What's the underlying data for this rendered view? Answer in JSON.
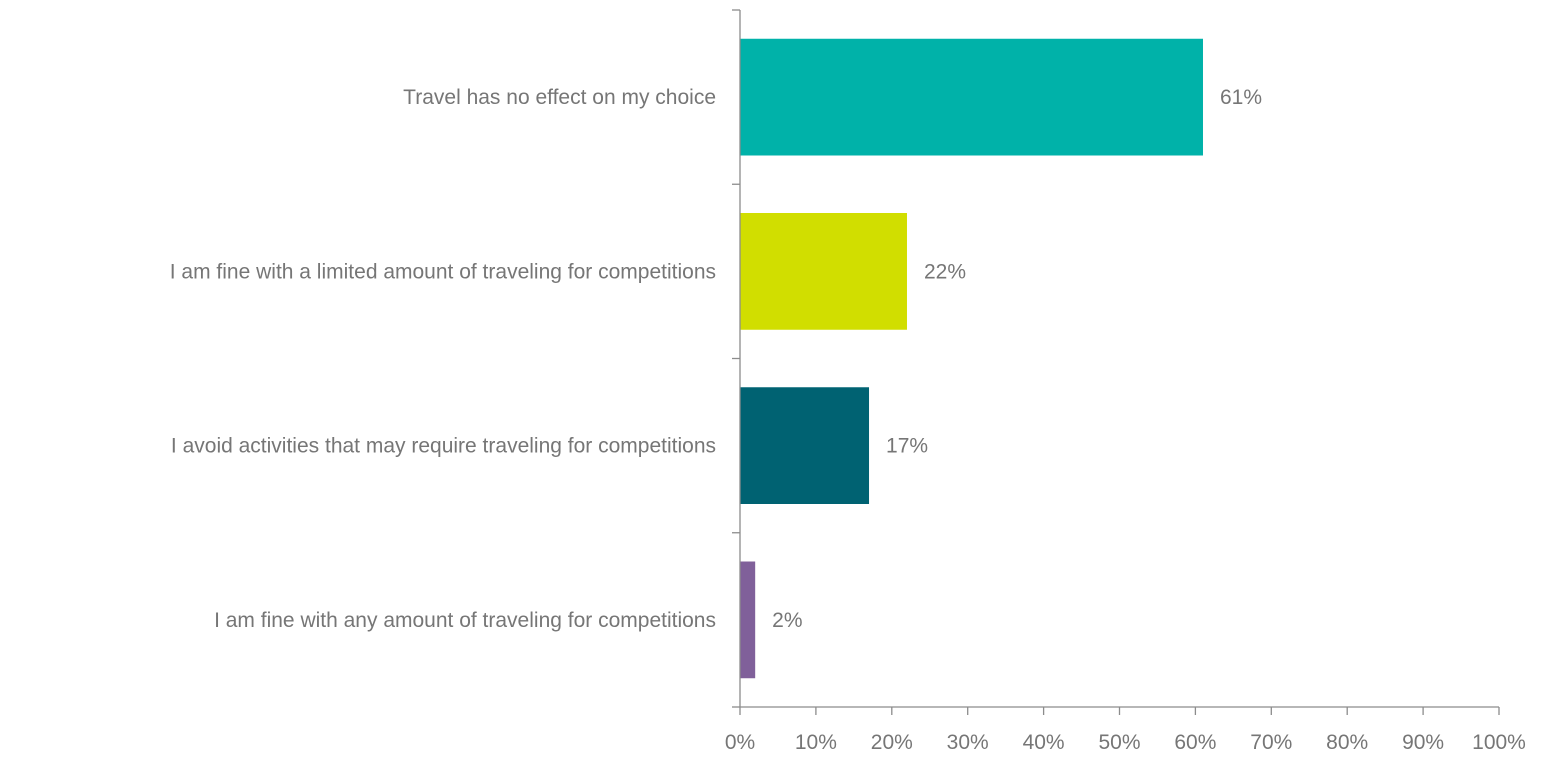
{
  "chart_data": {
    "type": "bar",
    "orientation": "horizontal",
    "categories": [
      "Travel has no effect on my choice",
      "I am fine with a limited amount of traveling for competitions",
      "I avoid activities that may require traveling for competitions",
      "I am fine with any amount of traveling for competitions"
    ],
    "values": [
      61,
      22,
      17,
      2
    ],
    "value_labels": [
      "61%",
      "22%",
      "17%",
      "2%"
    ],
    "colors": [
      "#00b2a9",
      "#d1de00",
      "#006272",
      "#80609a"
    ],
    "xlim": [
      0,
      100
    ],
    "x_ticks": [
      0,
      10,
      20,
      30,
      40,
      50,
      60,
      70,
      80,
      90,
      100
    ],
    "x_tick_labels": [
      "0%",
      "10%",
      "20%",
      "30%",
      "40%",
      "50%",
      "60%",
      "70%",
      "80%",
      "90%",
      "100%"
    ],
    "grid": false,
    "legend": "none"
  }
}
